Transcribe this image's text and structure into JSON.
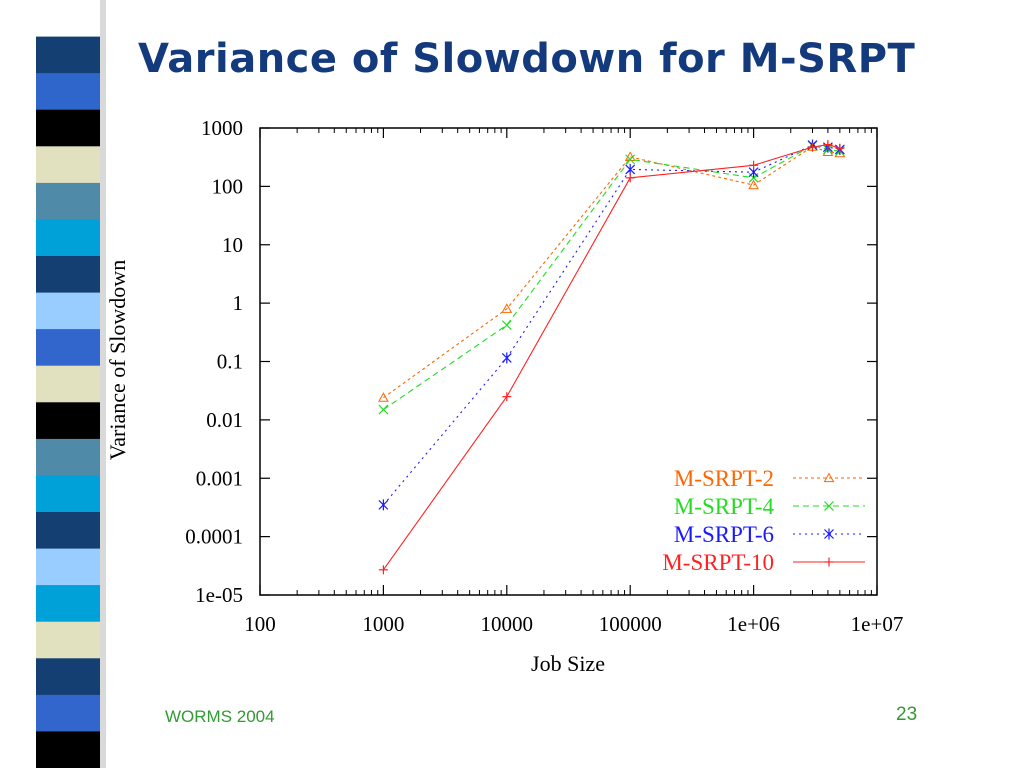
{
  "slide": {
    "title": "Variance of Slowdown for M-SRPT",
    "footer_left": "WORMS 2004",
    "page_number": "23",
    "stripe_colors": [
      "#ffffff",
      "#143f73",
      "#2e66cc",
      "#000000",
      "#e1e1bf",
      "#4f8aa8",
      "#00a0d8",
      "#143f73",
      "#99ccff",
      "#3366cc",
      "#e1e1bf",
      "#000000",
      "#4f8aa8",
      "#00a0d8",
      "#143f73",
      "#99ccff",
      "#00a0d8",
      "#e1e1bf",
      "#143f73",
      "#3366cc",
      "#000000"
    ]
  },
  "chart_data": {
    "type": "line",
    "xlabel": "Job Size",
    "ylabel": "Variance of Slowdown",
    "x_scale": "log",
    "y_scale": "log",
    "xlim": [
      100,
      10000000
    ],
    "ylim": [
      1e-05,
      1000
    ],
    "x_ticks": [
      {
        "value": 100,
        "label": "100"
      },
      {
        "value": 1000,
        "label": "1000"
      },
      {
        "value": 10000,
        "label": "10000"
      },
      {
        "value": 100000,
        "label": "100000"
      },
      {
        "value": 1000000,
        "label": "1e+06"
      },
      {
        "value": 10000000,
        "label": "1e+07"
      }
    ],
    "y_ticks": [
      {
        "value": 1000,
        "label": "1000"
      },
      {
        "value": 100,
        "label": "100"
      },
      {
        "value": 10,
        "label": "10"
      },
      {
        "value": 1,
        "label": "1"
      },
      {
        "value": 0.1,
        "label": "0.1"
      },
      {
        "value": 0.01,
        "label": "0.01"
      },
      {
        "value": 0.001,
        "label": "0.001"
      },
      {
        "value": 0.0001,
        "label": "0.0001"
      },
      {
        "value": 1e-05,
        "label": "1e-05"
      }
    ],
    "grid": false,
    "legend_position": "bottom-right",
    "series": [
      {
        "name": "M-SRPT-2",
        "color": "#ff6600",
        "dash": "3,3",
        "marker": "triangle",
        "x": [
          1000,
          10000,
          100000,
          1000000,
          3000000,
          4000000,
          5000000
        ],
        "y": [
          0.024,
          0.8,
          320,
          105,
          480,
          390,
          370
        ]
      },
      {
        "name": "M-SRPT-4",
        "color": "#22dd22",
        "dash": "6,4",
        "marker": "x",
        "x": [
          1000,
          10000,
          100000,
          1000000,
          3000000,
          4000000,
          5000000
        ],
        "y": [
          0.015,
          0.42,
          290,
          140,
          500,
          430,
          400
        ]
      },
      {
        "name": "M-SRPT-6",
        "color": "#1a1aff",
        "dash": "2,4",
        "marker": "star",
        "x": [
          1000,
          10000,
          100000,
          1000000,
          3000000,
          4000000,
          5000000
        ],
        "y": [
          0.00035,
          0.115,
          195,
          175,
          510,
          470,
          430
        ]
      },
      {
        "name": "M-SRPT-10",
        "color": "#ff2222",
        "dash": "",
        "marker": "plus",
        "x": [
          1000,
          10000,
          100000,
          1000000,
          3000000,
          4000000,
          5000000
        ],
        "y": [
          2.7e-05,
          0.025,
          140,
          230,
          470,
          520,
          450
        ]
      }
    ]
  }
}
